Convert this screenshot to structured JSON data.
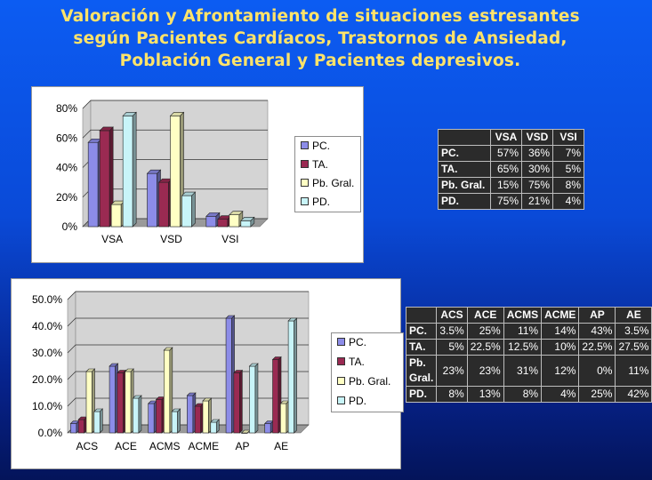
{
  "title_lines": [
    "Valoración y Afrontamiento de situaciones estresantes",
    "según Pacientes Cardíacos, Trastornos de Ansiedad,",
    "Población General y Pacientes depresivos."
  ],
  "colors": {
    "PC": "#8c8ce8",
    "TA": "#9a2a52",
    "PbGral": "#ffffc4",
    "PD": "#c8f4f8"
  },
  "chart_data": [
    {
      "type": "bar",
      "categories": [
        "VSA",
        "VSD",
        "VSI"
      ],
      "series": [
        {
          "name": "PC.",
          "values": [
            57,
            36,
            7
          ]
        },
        {
          "name": "TA.",
          "values": [
            65,
            30,
            5
          ]
        },
        {
          "name": "Pb. Gral.",
          "values": [
            15,
            75,
            8
          ]
        },
        {
          "name": "PD.",
          "values": [
            75,
            21,
            4
          ]
        }
      ],
      "ylim": [
        0,
        80
      ],
      "yticks": [
        "0%",
        "20%",
        "40%",
        "60%",
        "80%"
      ],
      "ytick_values": [
        0,
        20,
        40,
        60,
        80
      ],
      "grid": true,
      "legend": "right",
      "table": {
        "headers": [
          "",
          "VSA",
          "VSD",
          "VSI"
        ],
        "rows": [
          {
            "label": "PC.",
            "values": [
              "57%",
              "36%",
              "7%"
            ]
          },
          {
            "label": "TA.",
            "values": [
              "65%",
              "30%",
              "5%"
            ]
          },
          {
            "label": "Pb. Gral.",
            "values": [
              "15%",
              "75%",
              "8%"
            ]
          },
          {
            "label": "PD.",
            "values": [
              "75%",
              "21%",
              "4%"
            ]
          }
        ]
      }
    },
    {
      "type": "bar",
      "categories": [
        "ACS",
        "ACE",
        "ACMS",
        "ACME",
        "AP",
        "AE"
      ],
      "series": [
        {
          "name": "PC.",
          "values": [
            3.5,
            25,
            11,
            14,
            43,
            3.5
          ]
        },
        {
          "name": "TA.",
          "values": [
            5,
            22.5,
            12.5,
            10,
            22.5,
            27.5
          ]
        },
        {
          "name": "Pb. Gral.",
          "values": [
            23,
            23,
            31,
            12,
            0,
            11
          ]
        },
        {
          "name": "PD.",
          "values": [
            8,
            13,
            8,
            4,
            25,
            42
          ]
        }
      ],
      "ylim": [
        0,
        50
      ],
      "yticks": [
        "0.0%",
        "10.0%",
        "20.0%",
        "30.0%",
        "40.0%",
        "50.0%"
      ],
      "ytick_values": [
        0,
        10,
        20,
        30,
        40,
        50
      ],
      "grid": true,
      "legend": "right",
      "table": {
        "headers": [
          "",
          "ACS",
          "ACE",
          "ACMS",
          "ACME",
          "AP",
          "AE"
        ],
        "rows": [
          {
            "label": "PC.",
            "values": [
              "3.5%",
              "25%",
              "11%",
              "14%",
              "43%",
              "3.5%"
            ]
          },
          {
            "label": "TA.",
            "values": [
              "5%",
              "22.5%",
              "12.5%",
              "10%",
              "22.5%",
              "27.5%"
            ]
          },
          {
            "label": "Pb. Gral.",
            "values": [
              "23%",
              "23%",
              "31%",
              "12%",
              "0%",
              "11%"
            ]
          },
          {
            "label": "PD.",
            "values": [
              "8%",
              "13%",
              "8%",
              "4%",
              "25%",
              "42%"
            ]
          }
        ]
      }
    }
  ]
}
